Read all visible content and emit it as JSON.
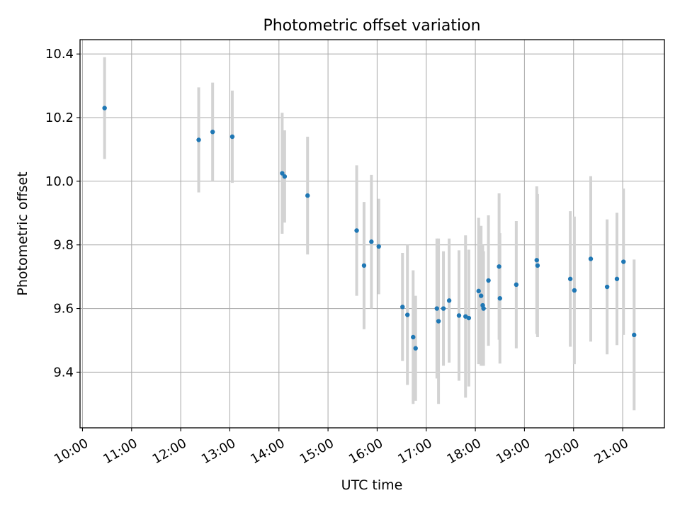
{
  "chart_data": {
    "type": "scatter",
    "title": "Photometric offset variation",
    "xlabel": "UTC time",
    "ylabel": "Photometric offset",
    "x_axis_kind": "time",
    "xlim": [
      "09:57",
      "21:51"
    ],
    "ylim": [
      9.225,
      10.445
    ],
    "grid": true,
    "colors": {
      "point": "#1f77b4",
      "error_bar": "#d3d3d3",
      "grid": "#b0b0b0"
    },
    "x_ticks": [
      "10:00",
      "11:00",
      "12:00",
      "13:00",
      "14:00",
      "15:00",
      "16:00",
      "17:00",
      "18:00",
      "19:00",
      "20:00",
      "21:00"
    ],
    "y_ticks": [
      9.4,
      9.6,
      9.8,
      10.0,
      10.2,
      10.4
    ],
    "points": [
      {
        "x": "10:27",
        "y": 10.23,
        "err": 0.16
      },
      {
        "x": "12:22",
        "y": 10.13,
        "err": 0.165
      },
      {
        "x": "12:39",
        "y": 10.155,
        "err": 0.155
      },
      {
        "x": "13:03",
        "y": 10.14,
        "err": 0.145
      },
      {
        "x": "14:04",
        "y": 10.025,
        "err": 0.19
      },
      {
        "x": "14:07",
        "y": 10.015,
        "err": 0.145
      },
      {
        "x": "14:35",
        "y": 9.955,
        "err": 0.185
      },
      {
        "x": "15:35",
        "y": 9.845,
        "err": 0.205
      },
      {
        "x": "15:44",
        "y": 9.735,
        "err": 0.2
      },
      {
        "x": "15:53",
        "y": 9.81,
        "err": 0.21
      },
      {
        "x": "16:02",
        "y": 9.795,
        "err": 0.15
      },
      {
        "x": "16:31",
        "y": 9.605,
        "err": 0.17
      },
      {
        "x": "16:37",
        "y": 9.58,
        "err": 0.22
      },
      {
        "x": "16:44",
        "y": 9.51,
        "err": 0.21
      },
      {
        "x": "16:47",
        "y": 9.475,
        "err": 0.165
      },
      {
        "x": "17:13",
        "y": 9.6,
        "err": 0.22
      },
      {
        "x": "17:15",
        "y": 9.56,
        "err": 0.26
      },
      {
        "x": "17:21",
        "y": 9.6,
        "err": 0.18
      },
      {
        "x": "17:28",
        "y": 9.625,
        "err": 0.195
      },
      {
        "x": "17:40",
        "y": 9.578,
        "err": 0.205
      },
      {
        "x": "17:48",
        "y": 9.575,
        "err": 0.255
      },
      {
        "x": "17:52",
        "y": 9.57,
        "err": 0.215
      },
      {
        "x": "18:04",
        "y": 9.655,
        "err": 0.23
      },
      {
        "x": "18:07",
        "y": 9.64,
        "err": 0.22
      },
      {
        "x": "18:09",
        "y": 9.61,
        "err": 0.19
      },
      {
        "x": "18:10",
        "y": 9.6,
        "err": 0.18
      },
      {
        "x": "18:16",
        "y": 9.688,
        "err": 0.205
      },
      {
        "x": "18:29",
        "y": 9.732,
        "err": 0.23
      },
      {
        "x": "18:30",
        "y": 9.632,
        "err": 0.205
      },
      {
        "x": "18:50",
        "y": 9.675,
        "err": 0.2
      },
      {
        "x": "19:15",
        "y": 9.752,
        "err": 0.232
      },
      {
        "x": "19:16",
        "y": 9.735,
        "err": 0.225
      },
      {
        "x": "19:56",
        "y": 9.693,
        "err": 0.213
      },
      {
        "x": "20:01",
        "y": 9.657,
        "err": 0.232
      },
      {
        "x": "20:21",
        "y": 9.756,
        "err": 0.26
      },
      {
        "x": "20:41",
        "y": 9.668,
        "err": 0.212
      },
      {
        "x": "20:53",
        "y": 9.693,
        "err": 0.208
      },
      {
        "x": "21:01",
        "y": 9.747,
        "err": 0.23
      },
      {
        "x": "21:14",
        "y": 9.517,
        "err": 0.237
      }
    ]
  }
}
